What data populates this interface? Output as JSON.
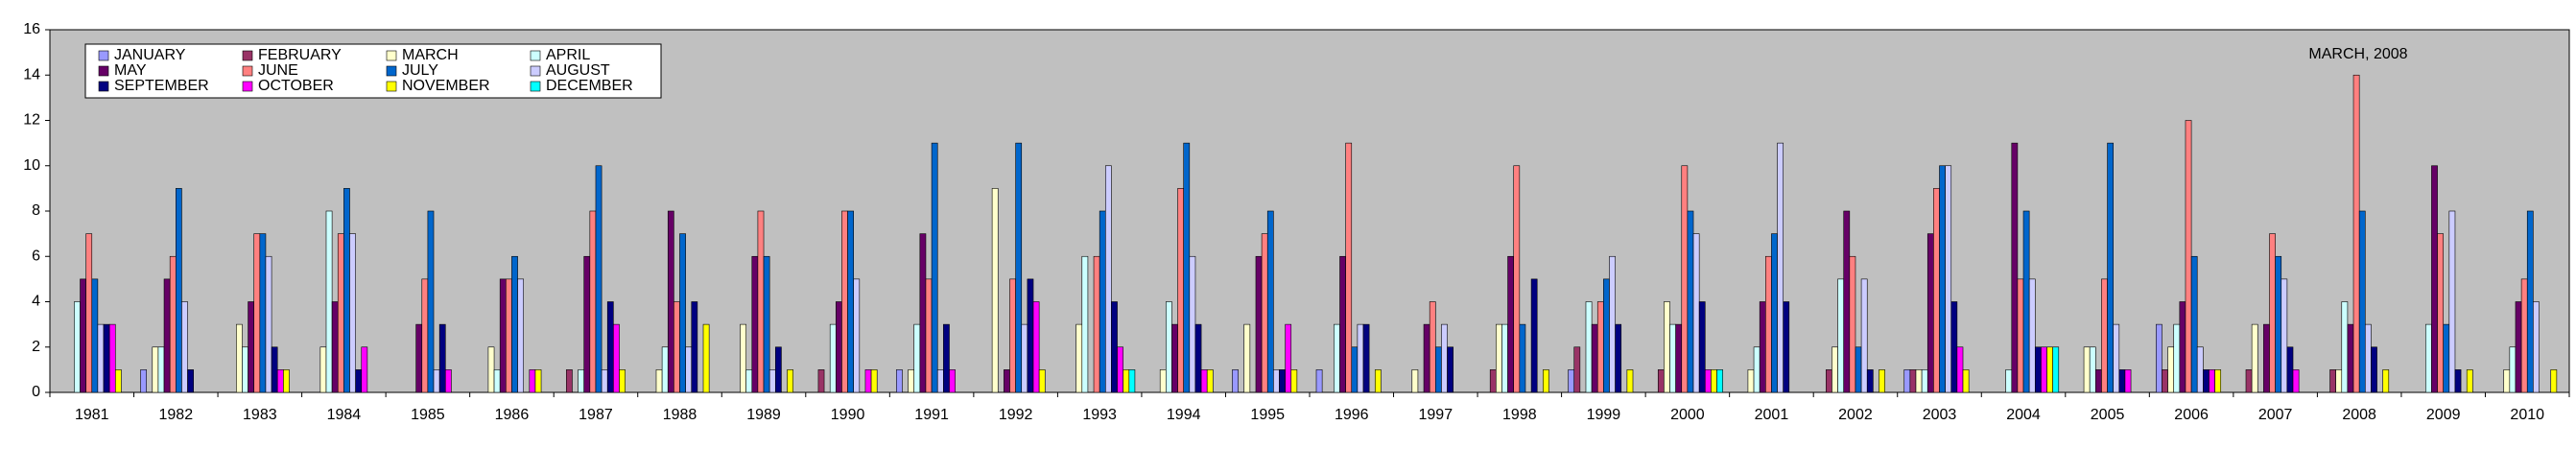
{
  "chart_data": {
    "type": "bar",
    "annotation": "MARCH, 2008",
    "categories": [
      "1981",
      "1982",
      "1983",
      "1984",
      "1985",
      "1986",
      "1987",
      "1988",
      "1989",
      "1990",
      "1991",
      "1992",
      "1993",
      "1994",
      "1995",
      "1996",
      "1997",
      "1998",
      "1999",
      "2000",
      "2001",
      "2002",
      "2003",
      "2004",
      "2005",
      "2006",
      "2007",
      "2008",
      "2009",
      "2010"
    ],
    "series": [
      {
        "name": "JANUARY",
        "color": "#9999FF",
        "values": [
          0,
          1,
          0,
          0,
          0,
          0,
          0,
          0,
          0,
          0,
          1,
          0,
          0,
          0,
          1,
          1,
          0,
          0,
          1,
          0,
          0,
          0,
          1,
          0,
          0,
          3,
          0,
          0,
          0,
          0
        ]
      },
      {
        "name": "FEBRUARY",
        "color": "#993366",
        "values": [
          0,
          0,
          0,
          0,
          0,
          0,
          1,
          0,
          0,
          1,
          0,
          0,
          0,
          0,
          0,
          0,
          0,
          1,
          2,
          1,
          0,
          1,
          1,
          0,
          0,
          1,
          1,
          1,
          0,
          0
        ]
      },
      {
        "name": "MARCH",
        "color": "#FFFFCC",
        "values": [
          0,
          2,
          3,
          2,
          0,
          2,
          0,
          1,
          3,
          0,
          1,
          9,
          3,
          1,
          3,
          0,
          1,
          3,
          0,
          4,
          1,
          2,
          1,
          0,
          2,
          2,
          3,
          1,
          0,
          1
        ]
      },
      {
        "name": "APRIL",
        "color": "#CCFFFF",
        "values": [
          4,
          2,
          2,
          8,
          0,
          1,
          1,
          2,
          1,
          3,
          3,
          0,
          6,
          4,
          0,
          3,
          0,
          3,
          4,
          3,
          2,
          5,
          1,
          1,
          2,
          3,
          0,
          4,
          3,
          2
        ]
      },
      {
        "name": "MAY",
        "color": "#660066",
        "values": [
          5,
          5,
          4,
          4,
          3,
          5,
          6,
          8,
          6,
          4,
          7,
          1,
          0,
          3,
          6,
          6,
          3,
          6,
          3,
          3,
          4,
          8,
          7,
          11,
          1,
          4,
          3,
          3,
          10,
          4
        ]
      },
      {
        "name": "JUNE",
        "color": "#FF8080",
        "values": [
          7,
          6,
          7,
          7,
          5,
          5,
          8,
          4,
          8,
          8,
          5,
          5,
          6,
          9,
          7,
          11,
          4,
          10,
          4,
          10,
          6,
          6,
          9,
          5,
          5,
          12,
          7,
          14,
          7,
          5
        ]
      },
      {
        "name": "JULY",
        "color": "#0066CC",
        "values": [
          5,
          9,
          7,
          9,
          8,
          6,
          10,
          7,
          6,
          8,
          11,
          11,
          8,
          11,
          8,
          2,
          2,
          3,
          5,
          8,
          7,
          2,
          10,
          8,
          11,
          6,
          6,
          8,
          3,
          8
        ]
      },
      {
        "name": "AUGUST",
        "color": "#CCCCFF",
        "values": [
          3,
          4,
          6,
          7,
          1,
          5,
          1,
          2,
          1,
          5,
          1,
          3,
          10,
          6,
          1,
          3,
          3,
          0,
          6,
          7,
          11,
          5,
          10,
          5,
          3,
          2,
          5,
          3,
          8,
          4
        ]
      },
      {
        "name": "SEPTEMBER",
        "color": "#000080",
        "values": [
          3,
          1,
          2,
          1,
          3,
          0,
          4,
          4,
          2,
          0,
          3,
          5,
          4,
          3,
          1,
          3,
          2,
          5,
          3,
          4,
          4,
          1,
          4,
          2,
          1,
          1,
          2,
          2,
          1,
          0
        ]
      },
      {
        "name": "OCTOBER",
        "color": "#FF00FF",
        "values": [
          3,
          0,
          1,
          2,
          1,
          1,
          3,
          0,
          0,
          1,
          1,
          4,
          2,
          1,
          3,
          0,
          0,
          0,
          0,
          1,
          0,
          0,
          2,
          2,
          1,
          1,
          1,
          0,
          0,
          0
        ]
      },
      {
        "name": "NOVEMBER",
        "color": "#FFFF00",
        "values": [
          1,
          0,
          1,
          0,
          0,
          1,
          1,
          3,
          1,
          1,
          0,
          1,
          1,
          1,
          1,
          1,
          0,
          1,
          1,
          1,
          0,
          1,
          1,
          2,
          0,
          1,
          0,
          1,
          1,
          1
        ]
      },
      {
        "name": "DECEMBER",
        "color": "#00FFFF",
        "values": [
          0,
          0,
          0,
          0,
          0,
          0,
          0,
          0,
          0,
          0,
          0,
          0,
          1,
          0,
          0,
          0,
          0,
          0,
          0,
          1,
          0,
          0,
          0,
          2,
          0,
          0,
          0,
          0,
          0,
          0
        ]
      }
    ],
    "ylim": [
      0,
      16
    ],
    "yticks": [
      0,
      2,
      4,
      6,
      8,
      10,
      12,
      14,
      16
    ],
    "legend": "upper left"
  }
}
